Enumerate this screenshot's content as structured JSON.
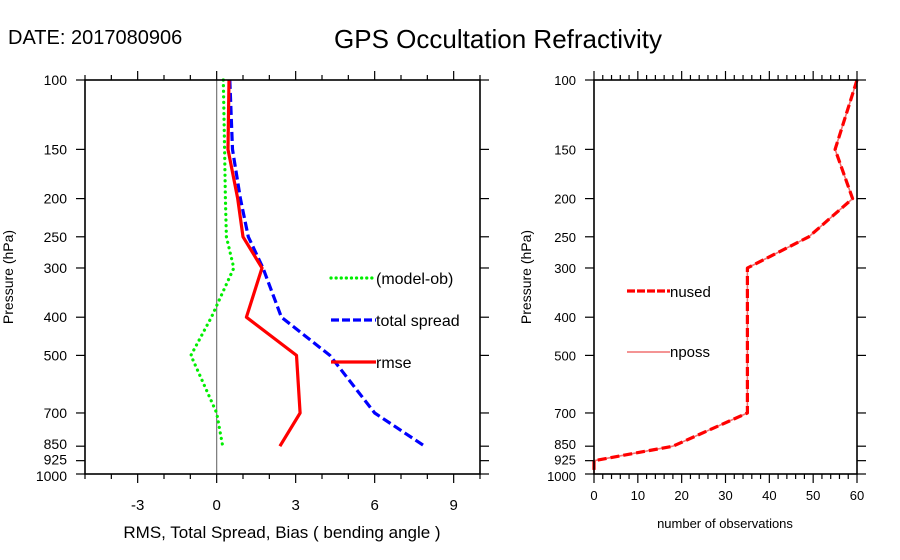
{
  "header": {
    "date_label": "DATE: 2017080906",
    "title": "GPS Occultation Refractivity"
  },
  "chart_data": [
    {
      "type": "line",
      "panel": "left",
      "title": "",
      "xlabel": "RMS, Total Spread, Bias ( bending angle )",
      "ylabel": "Pressure (hPa)",
      "xlim": [
        -5,
        10
      ],
      "ylim": [
        1000,
        100
      ],
      "yscale": "log",
      "x_ticks": [
        -3,
        0,
        3,
        6,
        9
      ],
      "x_tick_labels": [
        "-3",
        "0",
        "3",
        "6",
        "9"
      ],
      "y_ticks": [
        100,
        150,
        200,
        250,
        300,
        400,
        500,
        700,
        850,
        925,
        1000
      ],
      "y_tick_labels": [
        "100",
        "150",
        "200",
        "250",
        "300",
        "400",
        "500",
        "700",
        "850",
        "925",
        "1000"
      ],
      "reference_line_x": 0,
      "grid": false,
      "legend_position": "middle-right",
      "series": [
        {
          "name": "(model-ob)",
          "color": "#00ee00",
          "style": "dotted",
          "pressure": [
            100,
            150,
            200,
            250,
            300,
            400,
            500,
            700,
            850
          ],
          "values": [
            0.25,
            0.3,
            0.33,
            0.37,
            0.65,
            -0.2,
            -0.98,
            0.0,
            0.23
          ]
        },
        {
          "name": "total spread",
          "color": "#0000ff",
          "style": "dashed",
          "pressure": [
            100,
            150,
            200,
            250,
            300,
            400,
            500,
            700,
            850
          ],
          "values": [
            0.5,
            0.6,
            0.9,
            1.2,
            1.76,
            2.46,
            4.3,
            6.0,
            7.9
          ]
        },
        {
          "name": "rmse",
          "color": "#ff0000",
          "style": "solid",
          "pressure": [
            100,
            150,
            200,
            250,
            300,
            400,
            500,
            700,
            850
          ],
          "values": [
            0.47,
            0.43,
            0.8,
            1.0,
            1.72,
            1.13,
            3.03,
            3.17,
            2.4
          ]
        }
      ]
    },
    {
      "type": "line",
      "panel": "right",
      "title": "",
      "xlabel": "number of observations",
      "ylabel": "Pressure (hPa)",
      "xlim": [
        0,
        60
      ],
      "ylim": [
        1000,
        100
      ],
      "yscale": "log",
      "x_ticks": [
        0,
        10,
        20,
        30,
        40,
        50,
        60
      ],
      "x_tick_labels": [
        "0",
        "10",
        "20",
        "30",
        "40",
        "50",
        "60"
      ],
      "y_ticks": [
        100,
        150,
        200,
        250,
        300,
        400,
        500,
        700,
        850,
        925,
        1000
      ],
      "y_tick_labels": [
        "100",
        "150",
        "200",
        "250",
        "300",
        "400",
        "500",
        "700",
        "850",
        "925",
        "1000"
      ],
      "grid": false,
      "legend_position": "middle-left",
      "series": [
        {
          "name": "nposs",
          "color": "#f07070",
          "style": "solid",
          "pressure": [
            100,
            150,
            200,
            250,
            300,
            400,
            500,
            700,
            850,
            925,
            1000
          ],
          "values": [
            60,
            55,
            59,
            49,
            35,
            35,
            35,
            35,
            18,
            0,
            0
          ]
        },
        {
          "name": "nused",
          "color": "#ff0000",
          "style": "dashed",
          "pressure": [
            100,
            150,
            200,
            250,
            300,
            400,
            500,
            700,
            850,
            925,
            1000
          ],
          "values": [
            60,
            55,
            59,
            49,
            35,
            35,
            35,
            35,
            18,
            0,
            0
          ]
        }
      ]
    }
  ]
}
